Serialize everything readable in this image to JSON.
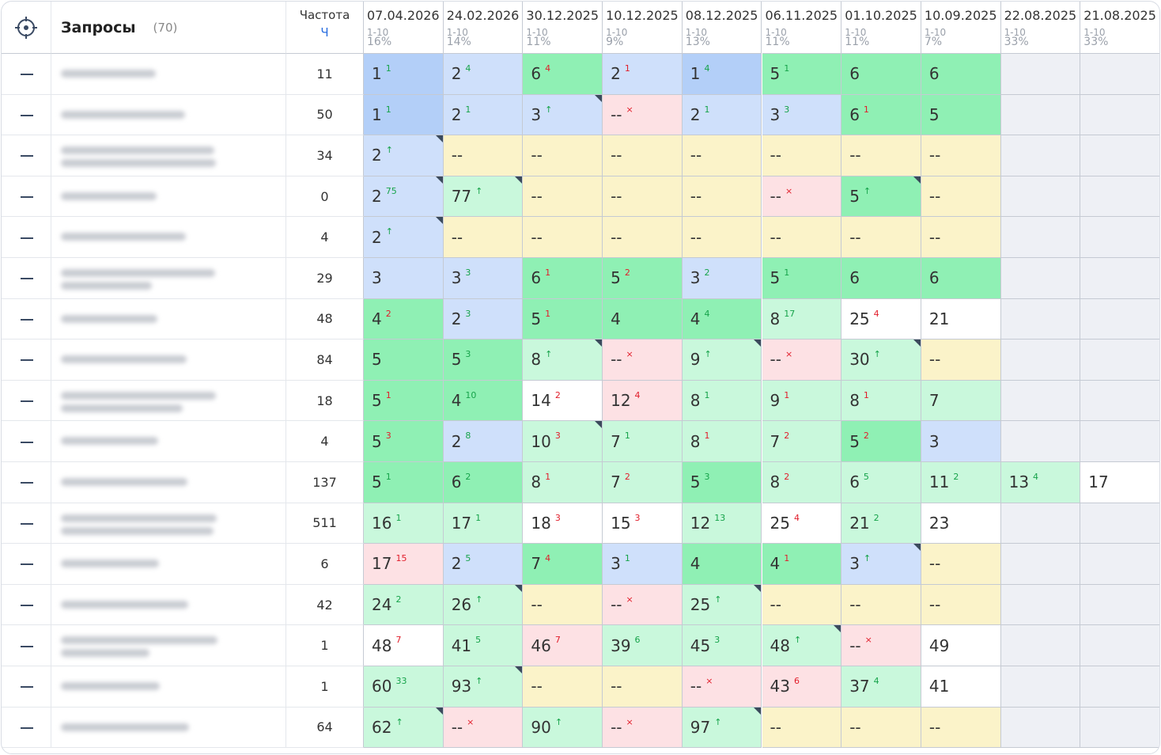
{
  "header": {
    "query_title": "Запросы",
    "query_count": "(70)",
    "freq_title": "Частота",
    "freq_unit": "Ч",
    "dates": [
      {
        "date": "07.04.2026",
        "range": "1-10",
        "share": "16%"
      },
      {
        "date": "24.02.2026",
        "range": "1-10",
        "share": "14%"
      },
      {
        "date": "30.12.2025",
        "range": "1-10",
        "share": "11%"
      },
      {
        "date": "10.12.2025",
        "range": "1-10",
        "share": "9%"
      },
      {
        "date": "08.12.2025",
        "range": "1-10",
        "share": "13%"
      },
      {
        "date": "06.11.2025",
        "range": "1-10",
        "share": "11%"
      },
      {
        "date": "01.10.2025",
        "range": "1-10",
        "share": "11%"
      },
      {
        "date": "10.09.2025",
        "range": "1-10",
        "share": "7%"
      },
      {
        "date": "22.08.2025",
        "range": "1-10",
        "share": "33%"
      },
      {
        "date": "21.08.2025",
        "range": "1-10",
        "share": "33%"
      }
    ]
  },
  "colors": {
    "b1": "#b3cff8",
    "b": "#cfe0fb",
    "g": "#8ff0b4",
    "lg": "#c9f8dc",
    "y": "#fbf3c9",
    "p": "#fde1e4",
    "w": "#ffffff",
    "empty": "#eef0f5",
    "up": "#16a34a",
    "down": "#e11d2a"
  },
  "table": {
    "rows": [
      {
        "freq": "11",
        "cells": [
          {
            "v": "1",
            "d": "1",
            "dir": "up",
            "bg": "b1"
          },
          {
            "v": "2",
            "d": "4",
            "dir": "up",
            "bg": "b"
          },
          {
            "v": "6",
            "d": "4",
            "dir": "down",
            "bg": "g"
          },
          {
            "v": "2",
            "d": "1",
            "dir": "down",
            "bg": "b"
          },
          {
            "v": "1",
            "d": "4",
            "dir": "up",
            "bg": "b1"
          },
          {
            "v": "5",
            "d": "1",
            "dir": "up",
            "bg": "g"
          },
          {
            "v": "6",
            "bg": "g"
          },
          {
            "v": "6",
            "bg": "g"
          },
          null,
          null
        ]
      },
      {
        "freq": "50",
        "cells": [
          {
            "v": "1",
            "d": "1",
            "dir": "up",
            "bg": "b1"
          },
          {
            "v": "2",
            "d": "1",
            "dir": "up",
            "bg": "b"
          },
          {
            "v": "3",
            "d": "↑",
            "dir": "up",
            "bg": "b",
            "flag": true
          },
          {
            "v": "--",
            "d": "×",
            "dir": "down",
            "bg": "p"
          },
          {
            "v": "2",
            "d": "1",
            "dir": "up",
            "bg": "b"
          },
          {
            "v": "3",
            "d": "3",
            "dir": "up",
            "bg": "b"
          },
          {
            "v": "6",
            "d": "1",
            "dir": "down",
            "bg": "g"
          },
          {
            "v": "5",
            "bg": "g"
          },
          null,
          null
        ]
      },
      {
        "freq": "34",
        "cells": [
          {
            "v": "2",
            "d": "↑",
            "dir": "up",
            "bg": "b",
            "flag": true
          },
          {
            "v": "--",
            "bg": "y"
          },
          {
            "v": "--",
            "bg": "y"
          },
          {
            "v": "--",
            "bg": "y"
          },
          {
            "v": "--",
            "bg": "y"
          },
          {
            "v": "--",
            "bg": "y"
          },
          {
            "v": "--",
            "bg": "y"
          },
          {
            "v": "--",
            "bg": "y"
          },
          null,
          null
        ]
      },
      {
        "freq": "0",
        "cells": [
          {
            "v": "2",
            "d": "75",
            "dir": "up",
            "bg": "b",
            "flag": true
          },
          {
            "v": "77",
            "d": "↑",
            "dir": "up",
            "bg": "lg",
            "flag": true
          },
          {
            "v": "--",
            "bg": "y"
          },
          {
            "v": "--",
            "bg": "y"
          },
          {
            "v": "--",
            "bg": "y"
          },
          {
            "v": "--",
            "d": "×",
            "dir": "down",
            "bg": "p"
          },
          {
            "v": "5",
            "d": "↑",
            "dir": "up",
            "bg": "g",
            "flag": true
          },
          {
            "v": "--",
            "bg": "y"
          },
          null,
          null
        ]
      },
      {
        "freq": "4",
        "cells": [
          {
            "v": "2",
            "d": "↑",
            "dir": "up",
            "bg": "b",
            "flag": true
          },
          {
            "v": "--",
            "bg": "y"
          },
          {
            "v": "--",
            "bg": "y"
          },
          {
            "v": "--",
            "bg": "y"
          },
          {
            "v": "--",
            "bg": "y"
          },
          {
            "v": "--",
            "bg": "y"
          },
          {
            "v": "--",
            "bg": "y"
          },
          {
            "v": "--",
            "bg": "y"
          },
          null,
          null
        ]
      },
      {
        "freq": "29",
        "cells": [
          {
            "v": "3",
            "bg": "b"
          },
          {
            "v": "3",
            "d": "3",
            "dir": "up",
            "bg": "b"
          },
          {
            "v": "6",
            "d": "1",
            "dir": "down",
            "bg": "g"
          },
          {
            "v": "5",
            "d": "2",
            "dir": "down",
            "bg": "g"
          },
          {
            "v": "3",
            "d": "2",
            "dir": "up",
            "bg": "b"
          },
          {
            "v": "5",
            "d": "1",
            "dir": "up",
            "bg": "g"
          },
          {
            "v": "6",
            "bg": "g"
          },
          {
            "v": "6",
            "bg": "g"
          },
          null,
          null
        ]
      },
      {
        "freq": "48",
        "cells": [
          {
            "v": "4",
            "d": "2",
            "dir": "down",
            "bg": "g"
          },
          {
            "v": "2",
            "d": "3",
            "dir": "up",
            "bg": "b"
          },
          {
            "v": "5",
            "d": "1",
            "dir": "down",
            "bg": "g"
          },
          {
            "v": "4",
            "bg": "g"
          },
          {
            "v": "4",
            "d": "4",
            "dir": "up",
            "bg": "g"
          },
          {
            "v": "8",
            "d": "17",
            "dir": "up",
            "bg": "lg"
          },
          {
            "v": "25",
            "d": "4",
            "dir": "down",
            "bg": "w"
          },
          {
            "v": "21",
            "bg": "w"
          },
          null,
          null
        ]
      },
      {
        "freq": "84",
        "cells": [
          {
            "v": "5",
            "bg": "g"
          },
          {
            "v": "5",
            "d": "3",
            "dir": "up",
            "bg": "g"
          },
          {
            "v": "8",
            "d": "↑",
            "dir": "up",
            "bg": "lg",
            "flag": true
          },
          {
            "v": "--",
            "d": "×",
            "dir": "down",
            "bg": "p"
          },
          {
            "v": "9",
            "d": "↑",
            "dir": "up",
            "bg": "lg",
            "flag": true
          },
          {
            "v": "--",
            "d": "×",
            "dir": "down",
            "bg": "p"
          },
          {
            "v": "30",
            "d": "↑",
            "dir": "up",
            "bg": "lg",
            "flag": true
          },
          {
            "v": "--",
            "bg": "y"
          },
          null,
          null
        ]
      },
      {
        "freq": "18",
        "cells": [
          {
            "v": "5",
            "d": "1",
            "dir": "down",
            "bg": "g"
          },
          {
            "v": "4",
            "d": "10",
            "dir": "up",
            "bg": "g"
          },
          {
            "v": "14",
            "d": "2",
            "dir": "down",
            "bg": "w"
          },
          {
            "v": "12",
            "d": "4",
            "dir": "down",
            "bg": "p"
          },
          {
            "v": "8",
            "d": "1",
            "dir": "up",
            "bg": "lg"
          },
          {
            "v": "9",
            "d": "1",
            "dir": "down",
            "bg": "lg"
          },
          {
            "v": "8",
            "d": "1",
            "dir": "down",
            "bg": "lg"
          },
          {
            "v": "7",
            "bg": "lg"
          },
          null,
          null
        ]
      },
      {
        "freq": "4",
        "cells": [
          {
            "v": "5",
            "d": "3",
            "dir": "down",
            "bg": "g"
          },
          {
            "v": "2",
            "d": "8",
            "dir": "up",
            "bg": "b"
          },
          {
            "v": "10",
            "d": "3",
            "dir": "down",
            "bg": "lg",
            "flag": true
          },
          {
            "v": "7",
            "d": "1",
            "dir": "up",
            "bg": "lg"
          },
          {
            "v": "8",
            "d": "1",
            "dir": "down",
            "bg": "lg"
          },
          {
            "v": "7",
            "d": "2",
            "dir": "down",
            "bg": "lg"
          },
          {
            "v": "5",
            "d": "2",
            "dir": "down",
            "bg": "g"
          },
          {
            "v": "3",
            "bg": "b"
          },
          null,
          null
        ]
      },
      {
        "freq": "137",
        "cells": [
          {
            "v": "5",
            "d": "1",
            "dir": "up",
            "bg": "g"
          },
          {
            "v": "6",
            "d": "2",
            "dir": "up",
            "bg": "g"
          },
          {
            "v": "8",
            "d": "1",
            "dir": "down",
            "bg": "lg"
          },
          {
            "v": "7",
            "d": "2",
            "dir": "down",
            "bg": "lg"
          },
          {
            "v": "5",
            "d": "3",
            "dir": "up",
            "bg": "g"
          },
          {
            "v": "8",
            "d": "2",
            "dir": "down",
            "bg": "lg"
          },
          {
            "v": "6",
            "d": "5",
            "dir": "up",
            "bg": "lg"
          },
          {
            "v": "11",
            "d": "2",
            "dir": "up",
            "bg": "lg"
          },
          {
            "v": "13",
            "d": "4",
            "dir": "up",
            "bg": "lg"
          },
          {
            "v": "17",
            "bg": "w"
          }
        ]
      },
      {
        "freq": "511",
        "cells": [
          {
            "v": "16",
            "d": "1",
            "dir": "up",
            "bg": "lg"
          },
          {
            "v": "17",
            "d": "1",
            "dir": "up",
            "bg": "lg"
          },
          {
            "v": "18",
            "d": "3",
            "dir": "down",
            "bg": "w"
          },
          {
            "v": "15",
            "d": "3",
            "dir": "down",
            "bg": "w"
          },
          {
            "v": "12",
            "d": "13",
            "dir": "up",
            "bg": "lg"
          },
          {
            "v": "25",
            "d": "4",
            "dir": "down",
            "bg": "w"
          },
          {
            "v": "21",
            "d": "2",
            "dir": "up",
            "bg": "lg"
          },
          {
            "v": "23",
            "bg": "w"
          },
          null,
          null
        ]
      },
      {
        "freq": "6",
        "cells": [
          {
            "v": "17",
            "d": "15",
            "dir": "down",
            "bg": "p"
          },
          {
            "v": "2",
            "d": "5",
            "dir": "up",
            "bg": "b"
          },
          {
            "v": "7",
            "d": "4",
            "dir": "down",
            "bg": "g"
          },
          {
            "v": "3",
            "d": "1",
            "dir": "up",
            "bg": "b"
          },
          {
            "v": "4",
            "bg": "g"
          },
          {
            "v": "4",
            "d": "1",
            "dir": "down",
            "bg": "g"
          },
          {
            "v": "3",
            "d": "↑",
            "dir": "up",
            "bg": "b",
            "flag": true
          },
          {
            "v": "--",
            "bg": "y"
          },
          null,
          null
        ]
      },
      {
        "freq": "42",
        "cells": [
          {
            "v": "24",
            "d": "2",
            "dir": "up",
            "bg": "lg"
          },
          {
            "v": "26",
            "d": "↑",
            "dir": "up",
            "bg": "lg",
            "flag": true
          },
          {
            "v": "--",
            "bg": "y"
          },
          {
            "v": "--",
            "d": "×",
            "dir": "down",
            "bg": "p"
          },
          {
            "v": "25",
            "d": "↑",
            "dir": "up",
            "bg": "lg",
            "flag": true
          },
          {
            "v": "--",
            "bg": "y"
          },
          {
            "v": "--",
            "bg": "y"
          },
          {
            "v": "--",
            "bg": "y"
          },
          null,
          null
        ]
      },
      {
        "freq": "1",
        "cells": [
          {
            "v": "48",
            "d": "7",
            "dir": "down",
            "bg": "w"
          },
          {
            "v": "41",
            "d": "5",
            "dir": "up",
            "bg": "lg"
          },
          {
            "v": "46",
            "d": "7",
            "dir": "down",
            "bg": "p"
          },
          {
            "v": "39",
            "d": "6",
            "dir": "up",
            "bg": "lg"
          },
          {
            "v": "45",
            "d": "3",
            "dir": "up",
            "bg": "lg"
          },
          {
            "v": "48",
            "d": "↑",
            "dir": "up",
            "bg": "lg",
            "flag": true
          },
          {
            "v": "--",
            "d": "×",
            "dir": "down",
            "bg": "p"
          },
          {
            "v": "49",
            "bg": "w"
          },
          null,
          null
        ]
      },
      {
        "freq": "1",
        "cells": [
          {
            "v": "60",
            "d": "33",
            "dir": "up",
            "bg": "lg"
          },
          {
            "v": "93",
            "d": "↑",
            "dir": "up",
            "bg": "lg",
            "flag": true
          },
          {
            "v": "--",
            "bg": "y"
          },
          {
            "v": "--",
            "bg": "y"
          },
          {
            "v": "--",
            "d": "×",
            "dir": "down",
            "bg": "p"
          },
          {
            "v": "43",
            "d": "6",
            "dir": "down",
            "bg": "p"
          },
          {
            "v": "37",
            "d": "4",
            "dir": "up",
            "bg": "lg"
          },
          {
            "v": "41",
            "bg": "w"
          },
          null,
          null
        ]
      },
      {
        "freq": "64",
        "cells": [
          {
            "v": "62",
            "d": "↑",
            "dir": "up",
            "bg": "lg",
            "flag": true
          },
          {
            "v": "--",
            "d": "×",
            "dir": "down",
            "bg": "p"
          },
          {
            "v": "90",
            "d": "↑",
            "dir": "up",
            "bg": "lg"
          },
          {
            "v": "--",
            "d": "×",
            "dir": "down",
            "bg": "p"
          },
          {
            "v": "97",
            "d": "↑",
            "dir": "up",
            "bg": "lg",
            "flag": true
          },
          {
            "v": "--",
            "bg": "y"
          },
          {
            "v": "--",
            "bg": "y"
          },
          {
            "v": "--",
            "bg": "y"
          },
          null,
          null
        ]
      }
    ]
  }
}
